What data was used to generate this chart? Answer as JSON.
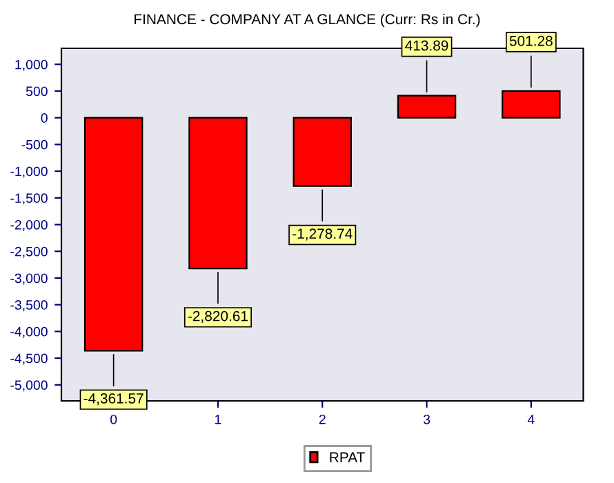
{
  "chart_data": {
    "type": "bar",
    "title": "FINANCE - COMPANY AT A GLANCE (Curr: Rs in Cr.)",
    "categories": [
      "0",
      "1",
      "2",
      "3",
      "4"
    ],
    "series": [
      {
        "name": "RPAT",
        "color": "#ff0000",
        "values": [
          -4361.57,
          -2820.61,
          -1278.74,
          413.89,
          501.28
        ],
        "value_labels": [
          "-4,361.57",
          "-2,820.61",
          "-1,278.74",
          "413.89",
          "501.28"
        ]
      }
    ],
    "ylim": [
      -5300,
      1300
    ],
    "yticks": [
      {
        "value": -5000,
        "label": "-5,000"
      },
      {
        "value": -4500,
        "label": "-4,500"
      },
      {
        "value": -4000,
        "label": "-4,000"
      },
      {
        "value": -3500,
        "label": "-3,500"
      },
      {
        "value": -3000,
        "label": "-3,000"
      },
      {
        "value": -2500,
        "label": "-2,500"
      },
      {
        "value": -2000,
        "label": "-2,000"
      },
      {
        "value": -1500,
        "label": "-1,500"
      },
      {
        "value": -1000,
        "label": "-1,000"
      },
      {
        "value": -500,
        "label": "-500"
      },
      0,
      500,
      {
        "value": 1000,
        "label": "1,000"
      }
    ],
    "grid": false,
    "legend": "bottom"
  }
}
